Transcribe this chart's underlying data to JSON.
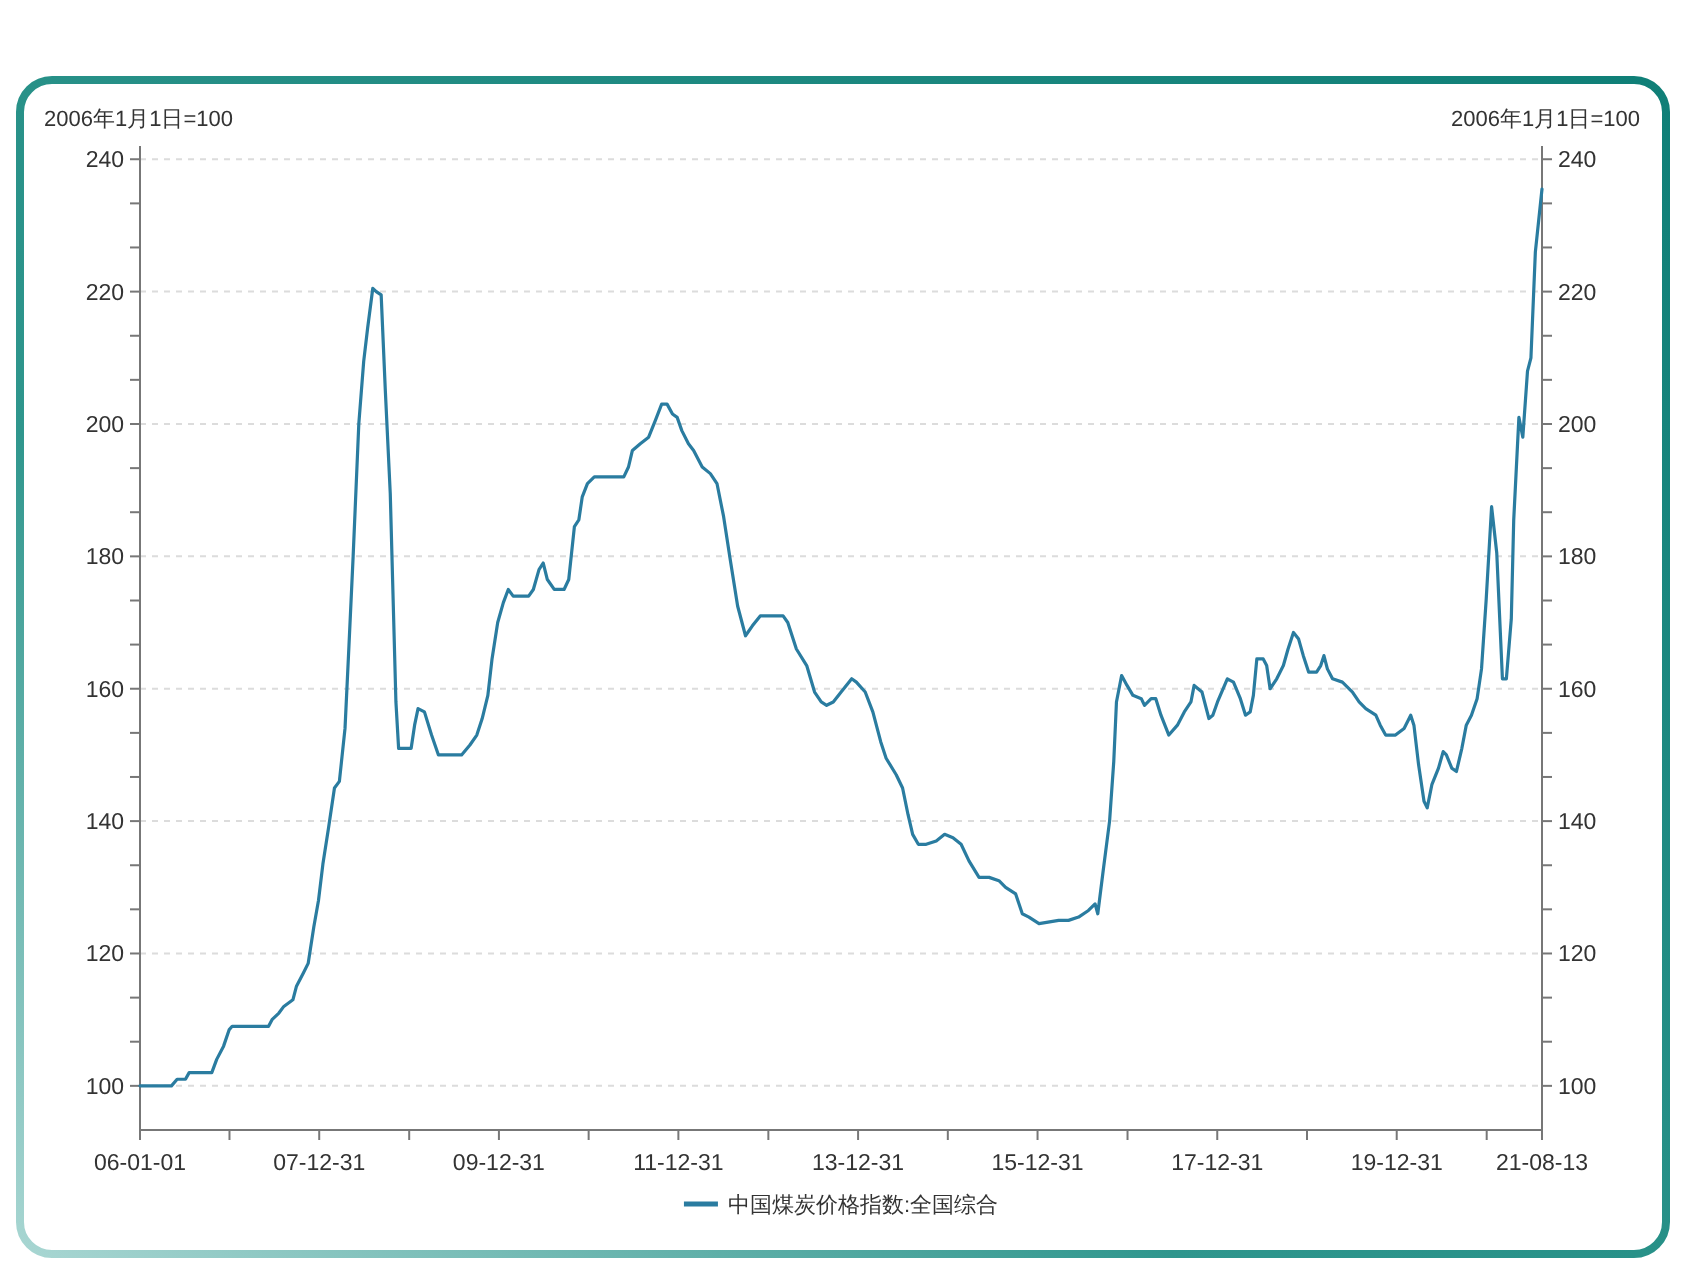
{
  "chart_data": {
    "type": "line",
    "ylabel": "2006年1月1日=100",
    "y2label": "2006年1月1日=100",
    "x": [
      "2006-01-01",
      "2006-05-09",
      "2006-06-01",
      "2006-07-05",
      "2006-07-20",
      "2006-10-20",
      "2006-11-09",
      "2006-12-07",
      "2006-12-30",
      "2007-01-11",
      "2007-06-08",
      "2007-06-22",
      "2007-07-20",
      "2007-08-09",
      "2007-09-15",
      "2007-09-29",
      "2007-10-27",
      "2007-11-16",
      "2007-12-09",
      "2007-12-28",
      "2008-01-15",
      "2008-02-07",
      "2008-03-02",
      "2008-03-22",
      "2008-04-14",
      "2008-04-30",
      "2008-05-17",
      "2008-06-09",
      "2008-06-29",
      "2008-07-15",
      "2008-08-05",
      "2008-08-19",
      "2008-09-08",
      "2008-09-25",
      "2008-10-15",
      "2008-11-07",
      "2008-11-18",
      "2009-01-08",
      "2009-01-22",
      "2009-02-05",
      "2009-03-03",
      "2009-04-01",
      "2009-04-29",
      "2009-08-01",
      "2009-09-04",
      "2009-10-02",
      "2009-10-24",
      "2009-11-16",
      "2009-12-03",
      "2009-12-26",
      "2010-01-18",
      "2010-02-07",
      "2010-02-27",
      "2010-05-01",
      "2010-05-20",
      "2010-06-12",
      "2010-06-29",
      "2010-07-16",
      "2010-08-13",
      "2010-09-22",
      "2010-10-11",
      "2010-11-03",
      "2010-11-21",
      "2010-12-05",
      "2010-12-26",
      "2011-01-23",
      "2011-05-23",
      "2011-06-11",
      "2011-06-27",
      "2011-07-29",
      "2011-09-01",
      "2011-09-28",
      "2011-10-24",
      "2011-11-15",
      "2011-12-07",
      "2011-12-26",
      "2012-01-14",
      "2012-02-10",
      "2012-03-02",
      "2012-04-06",
      "2012-05-09",
      "2012-06-05",
      "2012-07-02",
      "2012-07-29",
      "2012-08-28",
      "2012-09-29",
      "2012-10-27",
      "2012-11-28",
      "2013-01-08",
      "2013-03-01",
      "2013-03-20",
      "2013-04-24",
      "2013-06-05",
      "2013-07-07",
      "2013-08-03",
      "2013-08-25",
      "2013-09-21",
      "2013-10-23",
      "2013-12-05",
      "2013-12-24",
      "2014-01-29",
      "2014-03-01",
      "2014-04-02",
      "2014-04-24",
      "2014-06-04",
      "2014-06-30",
      "2014-07-22",
      "2014-08-10",
      "2014-09-02",
      "2014-10-04",
      "2014-11-14",
      "2014-12-18",
      "2015-01-21",
      "2015-02-23",
      "2015-03-27",
      "2015-05-07",
      "2015-06-17",
      "2015-07-27",
      "2015-08-23",
      "2015-10-03",
      "2015-10-30",
      "2015-11-26",
      "2016-01-06",
      "2016-03-26",
      "2016-05-05",
      "2016-06-15",
      "2016-07-25",
      "2016-08-21",
      "2016-09-01",
      "2016-09-23",
      "2016-10-19",
      "2016-11-05",
      "2016-11-16",
      "2016-12-07",
      "2016-12-29",
      "2017-01-22",
      "2017-02-25",
      "2017-03-10",
      "2017-04-06",
      "2017-04-25",
      "2017-05-16",
      "2017-06-17",
      "2017-07-22",
      "2017-08-19",
      "2017-09-15",
      "2017-09-28",
      "2017-10-30",
      "2017-11-27",
      "2017-12-13",
      "2018-01-01",
      "2018-02-10",
      "2018-03-07",
      "2018-04-04",
      "2018-04-25",
      "2018-05-14",
      "2018-05-27",
      "2018-06-10",
      "2018-07-06",
      "2018-07-20",
      "2018-08-03",
      "2018-08-30",
      "2018-09-26",
      "2018-10-15",
      "2018-11-06",
      "2018-11-27",
      "2018-12-16",
      "2019-01-07",
      "2019-02-08",
      "2019-02-25",
      "2019-03-10",
      "2019-03-24",
      "2019-04-14",
      "2019-05-24",
      "2019-07-04",
      "2019-07-31",
      "2019-08-27",
      "2019-10-07",
      "2019-10-25",
      "2019-11-16",
      "2019-12-26",
      "2020-01-30",
      "2020-02-26",
      "2020-03-10",
      "2020-03-29",
      "2020-04-20",
      "2020-05-03",
      "2020-05-22",
      "2020-06-18",
      "2020-07-07",
      "2020-07-20",
      "2020-08-11",
      "2020-08-30",
      "2020-09-21",
      "2020-10-09",
      "2020-10-30",
      "2020-11-22",
      "2020-12-10",
      "2020-12-29",
      "2021-01-20",
      "2021-02-10",
      "2021-03-05",
      "2021-03-21",
      "2021-04-10",
      "2021-04-20",
      "2021-05-11",
      "2021-05-27",
      "2021-06-15",
      "2021-06-29",
      "2021-07-17",
      "2021-08-13"
    ],
    "series": [
      {
        "name": "中国煤炭价格指数:全国综合",
        "color": "#2a7ca0",
        "values": [
          100,
          100,
          101,
          101,
          102,
          102,
          104,
          106,
          108.5,
          109,
          109,
          110,
          111,
          112,
          113,
          115,
          117,
          118.5,
          124,
          128,
          133.5,
          139,
          145,
          146,
          154,
          166.5,
          180,
          200,
          209.5,
          214.5,
          220.5,
          220,
          219.5,
          205,
          189.5,
          158,
          151,
          151,
          154.5,
          157,
          156.5,
          153,
          150,
          150,
          151.5,
          153,
          155.5,
          159,
          164.5,
          170,
          173,
          175,
          174,
          174,
          175,
          178,
          179,
          176.5,
          175,
          175,
          176.5,
          184.5,
          185.5,
          189,
          191,
          192,
          192,
          193.5,
          196,
          197,
          198,
          200.5,
          203,
          203,
          201.5,
          201,
          199,
          197,
          196,
          193.5,
          192.5,
          191,
          186,
          179.5,
          172.5,
          168,
          169.5,
          171,
          171,
          171,
          170,
          166,
          163.5,
          159.5,
          158,
          157.5,
          158,
          159.5,
          161.5,
          161,
          159.5,
          156.5,
          152,
          149.5,
          147,
          145,
          141,
          138,
          136.5,
          136.5,
          137,
          138,
          137.5,
          136.5,
          134,
          131.5,
          131.5,
          131,
          130,
          129,
          126,
          125.5,
          124.5,
          125,
          125,
          125.5,
          126.5,
          127.5,
          126,
          132.5,
          140,
          149,
          158,
          162,
          160.5,
          159,
          158.5,
          157.5,
          158.5,
          158.5,
          156,
          153,
          154.5,
          156.5,
          158,
          160.5,
          159.5,
          155.5,
          156,
          158,
          161.5,
          161,
          158.5,
          156,
          156.5,
          159,
          164.5,
          164.5,
          163.5,
          160,
          161.5,
          163.5,
          166,
          168.5,
          167.5,
          165,
          162.5,
          162.5,
          163.5,
          165,
          163,
          161.5,
          161,
          159.5,
          158,
          157,
          156,
          154.5,
          153,
          153,
          154,
          156,
          154.5,
          148.5,
          143,
          142,
          145.5,
          148,
          150.5,
          150,
          148,
          147.5,
          151,
          154.5,
          156,
          158.5,
          163,
          173.5,
          187.5,
          180.5,
          161.5,
          161.5,
          170.5,
          185.5,
          201,
          198,
          208,
          210,
          226,
          235.5
        ]
      }
    ],
    "xlim": [
      "2006-01-01",
      "2021-08-13"
    ],
    "xticks": [
      {
        "value": "2006-01-01",
        "label": "06-01-01"
      },
      {
        "value": "2006-12-31",
        "label": null
      },
      {
        "value": "2007-12-31",
        "label": "07-12-31"
      },
      {
        "value": "2008-12-31",
        "label": null
      },
      {
        "value": "2009-12-31",
        "label": "09-12-31"
      },
      {
        "value": "2010-12-31",
        "label": null
      },
      {
        "value": "2011-12-31",
        "label": "11-12-31"
      },
      {
        "value": "2012-12-31",
        "label": null
      },
      {
        "value": "2013-12-31",
        "label": "13-12-31"
      },
      {
        "value": "2014-12-31",
        "label": null
      },
      {
        "value": "2015-12-31",
        "label": "15-12-31"
      },
      {
        "value": "2016-12-31",
        "label": null
      },
      {
        "value": "2017-12-31",
        "label": "17-12-31"
      },
      {
        "value": "2018-12-31",
        "label": null
      },
      {
        "value": "2019-12-31",
        "label": "19-12-31"
      },
      {
        "value": "2020-12-31",
        "label": null
      },
      {
        "value": "2021-08-13",
        "label": "21-08-13"
      }
    ],
    "ylim": [
      93.33,
      242
    ],
    "yticks": [
      100,
      {
        "value": 106.67,
        "label": null
      },
      {
        "value": 113.33,
        "label": null
      },
      120,
      {
        "value": 126.67,
        "label": null
      },
      {
        "value": 133.33,
        "label": null
      },
      140,
      {
        "value": 146.67,
        "label": null
      },
      {
        "value": 153.33,
        "label": null
      },
      160,
      {
        "value": 166.67,
        "label": null
      },
      {
        "value": 173.33,
        "label": null
      },
      180,
      {
        "value": 186.67,
        "label": null
      },
      {
        "value": 193.33,
        "label": null
      },
      200,
      {
        "value": 206.67,
        "label": null
      },
      {
        "value": 213.33,
        "label": null
      },
      220,
      {
        "value": 226.67,
        "label": null
      },
      {
        "value": 233.33,
        "label": null
      },
      240
    ],
    "y2lim": [
      93.33,
      242
    ],
    "y2ticks": [
      100,
      {
        "value": 106.67,
        "label": null
      },
      {
        "value": 113.33,
        "label": null
      },
      120,
      {
        "value": 126.67,
        "label": null
      },
      {
        "value": 133.33,
        "label": null
      },
      140,
      {
        "value": 146.67,
        "label": null
      },
      {
        "value": 153.33,
        "label": null
      },
      160,
      {
        "value": 166.67,
        "label": null
      },
      {
        "value": 173.33,
        "label": null
      },
      180,
      {
        "value": 186.67,
        "label": null
      },
      {
        "value": 193.33,
        "label": null
      },
      200,
      {
        "value": 206.67,
        "label": null
      },
      {
        "value": 213.33,
        "label": null
      },
      220,
      {
        "value": 226.67,
        "label": null
      },
      {
        "value": 233.33,
        "label": null
      },
      240
    ],
    "grid": "y",
    "legend": "bottom"
  }
}
